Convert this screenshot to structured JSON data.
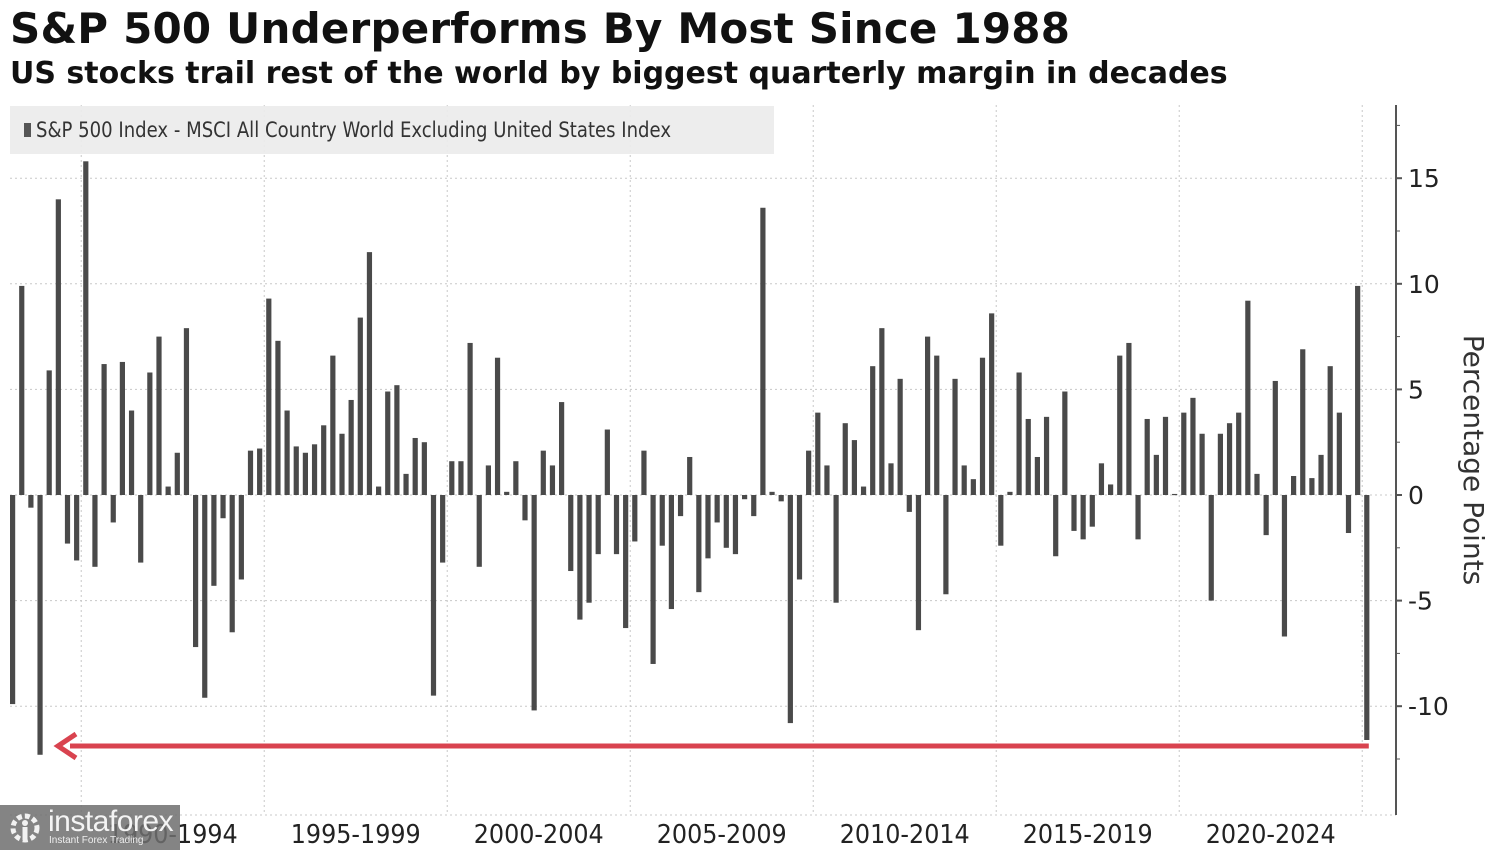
{
  "header": {
    "title": "S&P 500 Underperforms By Most Since 1988",
    "subtitle": "US stocks trail rest of the world by biggest quarterly margin in decades"
  },
  "legend": {
    "label": "S&P 500 Index - MSCI All Country World Excluding United States Index",
    "color": "#555555"
  },
  "watermark": {
    "brand": "instaforex",
    "tagline": "Instant Forex Trading"
  },
  "colors": {
    "bar": "#4a4a4a",
    "arrow": "#d9434f",
    "grid": "#c8c8c8",
    "axis": "#555555"
  },
  "chart_data": {
    "type": "bar",
    "title": "S&P 500 Underperforms By Most Since 1988",
    "subtitle": "US stocks trail rest of the world by biggest quarterly margin in decades",
    "series_name": "S&P 500 Index - MSCI All Country World Excluding United States Index",
    "frequency": "quarterly",
    "start_period": "1988Q1",
    "end_period": "2025Q1",
    "xlabel": "",
    "ylabel": "Percentage Points",
    "ylim": [
      -15,
      18
    ],
    "yticks": [
      15,
      10,
      5,
      0,
      -5,
      -10
    ],
    "x_tick_labels": [
      "1990-1994",
      "1995-1999",
      "2000-2004",
      "2005-2009",
      "2010-2014",
      "2015-2019",
      "2020-2024"
    ],
    "grid": true,
    "legend_position": "top-left",
    "y_axis_side": "right",
    "annotation": "red arrow pointing left from latest quarter (-11.6) back to 1988 level (-12.3)",
    "values": [
      -9.9,
      9.9,
      -0.6,
      -12.3,
      5.9,
      14.0,
      -2.3,
      -3.1,
      15.8,
      -3.4,
      6.2,
      -1.3,
      6.3,
      4.0,
      -3.2,
      5.8,
      7.5,
      0.4,
      2.0,
      7.9,
      -7.2,
      -9.6,
      -4.3,
      -1.1,
      -6.5,
      -4.0,
      2.1,
      2.2,
      9.3,
      7.3,
      4.0,
      2.3,
      2.0,
      2.4,
      3.3,
      6.6,
      2.9,
      4.5,
      8.4,
      11.5,
      0.4,
      4.9,
      5.2,
      1.0,
      2.7,
      2.5,
      -9.5,
      -3.2,
      1.6,
      1.6,
      7.2,
      -3.4,
      1.4,
      6.5,
      0.15,
      1.6,
      -1.2,
      -10.2,
      2.1,
      1.4,
      4.4,
      -3.6,
      -5.9,
      -5.1,
      -2.8,
      3.1,
      -2.8,
      -6.3,
      -2.2,
      2.1,
      -8.0,
      -2.4,
      -5.4,
      -1.0,
      1.8,
      -4.6,
      -3.0,
      -1.3,
      -2.5,
      -2.8,
      -0.2,
      -1.0,
      13.6,
      0.15,
      -0.3,
      -10.8,
      -4.0,
      2.1,
      3.9,
      1.4,
      -5.1,
      3.4,
      2.6,
      0.4,
      6.1,
      7.9,
      1.5,
      5.5,
      -0.8,
      -6.4,
      7.5,
      6.6,
      -4.7,
      5.5,
      1.4,
      0.75,
      6.5,
      8.6,
      -2.4,
      0.15,
      5.8,
      3.6,
      1.8,
      3.7,
      -2.9,
      4.9,
      -1.7,
      -2.1,
      -1.5,
      1.5,
      0.5,
      6.6,
      7.2,
      -2.1,
      3.6,
      1.9,
      3.7,
      0.05,
      3.9,
      4.6,
      2.9,
      -5.0,
      2.9,
      3.4,
      3.9,
      9.2,
      1.0,
      -1.9,
      5.4,
      -6.7,
      0.9,
      6.9,
      0.8,
      1.9,
      6.1,
      3.9,
      -1.8,
      9.9,
      -11.6
    ]
  }
}
